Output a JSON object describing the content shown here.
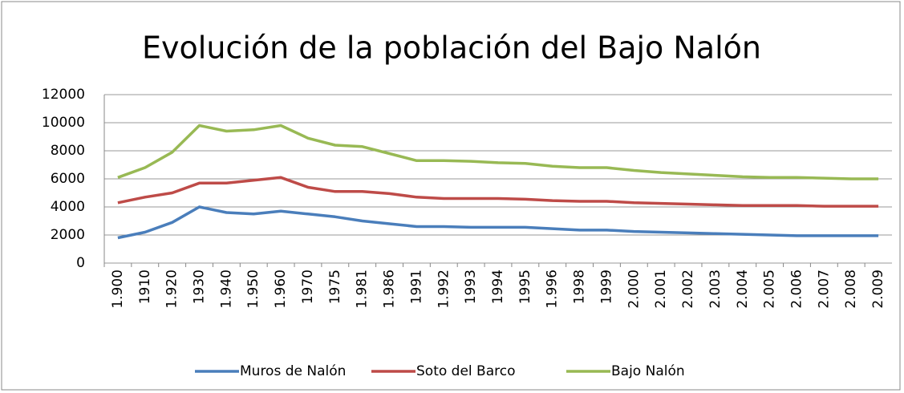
{
  "chart_data": {
    "type": "line",
    "title": "Evolución de la población del Bajo Nalón",
    "categories": [
      "1.900",
      "1910",
      "1.920",
      "1930",
      "1.940",
      "1.950",
      "1.960",
      "1970",
      "1975",
      "1.981",
      "1.986",
      "1991",
      "1.992",
      "1993",
      "1994",
      "1995",
      "1.996",
      "1998",
      "1999",
      "2.000",
      "2.001",
      "2.002",
      "2.003",
      "2.004",
      "2.005",
      "2.006",
      "2.007",
      "2.008",
      "2.009"
    ],
    "series": [
      {
        "name": "Muros de Nalón",
        "color": "#4a7ebb",
        "values": [
          1800,
          2200,
          2900,
          4000,
          3600,
          3500,
          3700,
          3500,
          3300,
          3000,
          2800,
          2600,
          2600,
          2550,
          2550,
          2550,
          2450,
          2350,
          2350,
          2250,
          2200,
          2150,
          2100,
          2050,
          2000,
          1950,
          1950,
          1950,
          1950
        ]
      },
      {
        "name": "Soto del Barco",
        "color": "#be4b48",
        "values": [
          4300,
          4700,
          5000,
          5700,
          5700,
          5900,
          6100,
          5400,
          5100,
          5100,
          4950,
          4700,
          4600,
          4600,
          4600,
          4550,
          4450,
          4400,
          4400,
          4300,
          4250,
          4200,
          4150,
          4100,
          4100,
          4100,
          4050,
          4050,
          4050
        ]
      },
      {
        "name": "Bajo Nalón",
        "color": "#98b954",
        "values": [
          6100,
          6800,
          7900,
          9800,
          9400,
          9500,
          9800,
          8900,
          8400,
          8300,
          7800,
          7300,
          7300,
          7250,
          7150,
          7100,
          6900,
          6800,
          6800,
          6600,
          6450,
          6350,
          6250,
          6150,
          6100,
          6100,
          6050,
          6000,
          6000
        ]
      }
    ],
    "ylim": [
      0,
      12000
    ],
    "yticks": [
      0,
      2000,
      4000,
      6000,
      8000,
      10000,
      12000
    ],
    "grid": true,
    "legend": "bottom"
  }
}
